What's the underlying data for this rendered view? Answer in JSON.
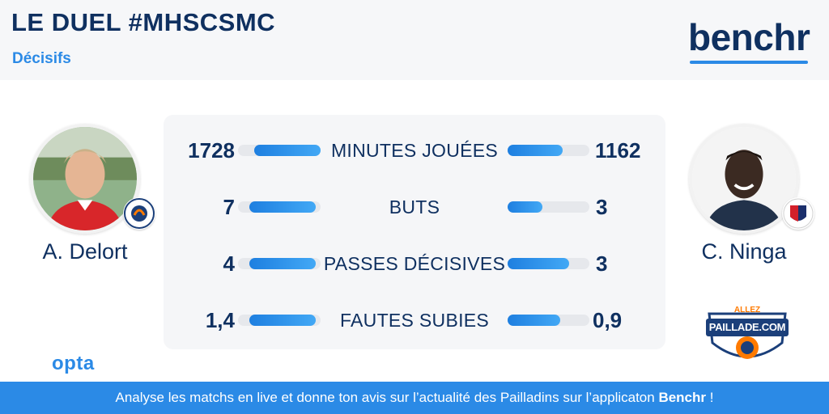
{
  "header": {
    "title": "LE DUEL #MHSCSMC",
    "subtitle": "Décisifs",
    "brand": "benchr"
  },
  "players": {
    "left": {
      "name": "A. Delort",
      "team_badge": "montpellier-badge",
      "accent": "#ff7a00"
    },
    "right": {
      "name": "C. Ninga",
      "team_badge": "caen-badge",
      "accent": "#1b2f6b"
    }
  },
  "stats": [
    {
      "label": "MINUTES JOUÉES",
      "left": "1728",
      "right": "1162",
      "left_fraction": 1.0,
      "right_fraction": 0.67
    },
    {
      "label": "BUTS",
      "left": "7",
      "right": "3",
      "left_fraction": 1.0,
      "right_fraction": 0.43
    },
    {
      "label": "PASSES DÉCISIVES",
      "left": "4",
      "right": "3",
      "left_fraction": 1.0,
      "right_fraction": 0.75
    },
    {
      "label": "FAUTES SUBIES",
      "left": "1,4",
      "right": "0,9",
      "left_fraction": 1.0,
      "right_fraction": 0.64
    }
  ],
  "logos": {
    "opta": "opta",
    "allez_top": "ALLEZ",
    "allez_main": "PAILLADE.COM"
  },
  "footer": {
    "text": "Analyse les matchs en live et donne ton avis sur l’actualité des Pailladins sur l’applicaton ",
    "brand": "Benchr",
    "suffix": " !"
  },
  "colors": {
    "navy": "#0f3060",
    "blue": "#2b8ae6",
    "panel": "#f5f6f8"
  }
}
